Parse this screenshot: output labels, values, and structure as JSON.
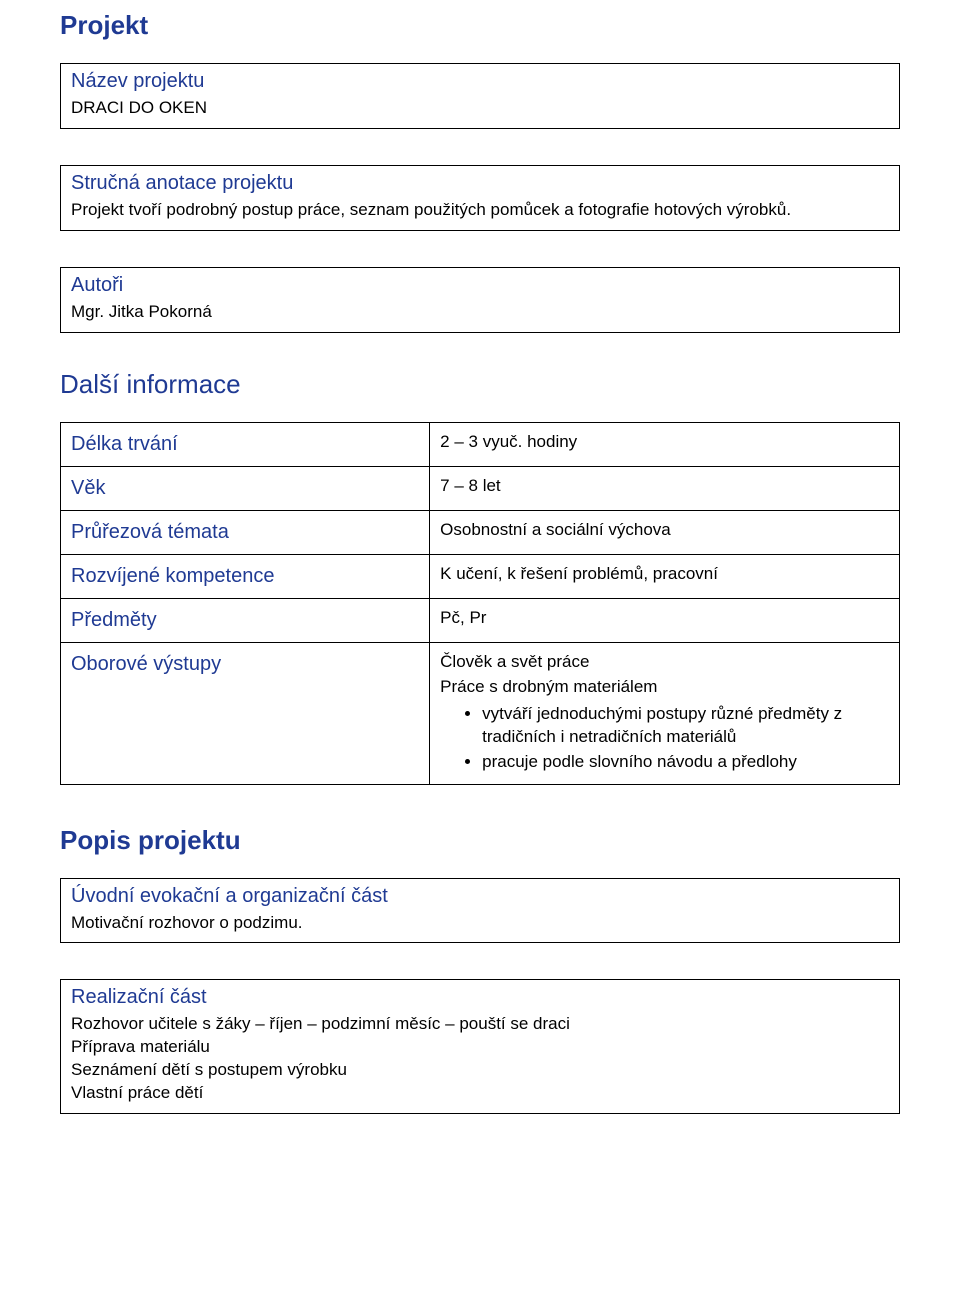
{
  "headings": {
    "project": "Projekt",
    "more_info": "Další informace",
    "description": "Popis projektu"
  },
  "name_box": {
    "title": "Název projektu",
    "value": "DRACI DO OKEN"
  },
  "annotation_box": {
    "title": "Stručná anotace projektu",
    "value": "Projekt tvoří podrobný postup práce, seznam použitých pomůcek a fotografie hotových výrobků."
  },
  "authors_box": {
    "title": "Autoři",
    "value": "Mgr. Jitka Pokorná"
  },
  "info": {
    "duration_label": "Délka trvání",
    "duration_value": "2 – 3 vyuč. hodiny",
    "age_label": "Věk",
    "age_value": "7 – 8 let",
    "crosscut_label": "Průřezová témata",
    "crosscut_value": "Osobnostní a sociální výchova",
    "competence_label": "Rozvíjené kompetence",
    "competence_value": "K učení, k řešení problémů, pracovní",
    "subjects_label": "Předměty",
    "subjects_value": "Pč, Pr",
    "outputs_label": "Oborové výstupy",
    "outputs_line1": "Člověk a svět práce",
    "outputs_line2": "Práce s drobným materiálem",
    "outputs_bullet1": "vytváří jednoduchými postupy různé předměty z tradičních i netradičních materiálů",
    "outputs_bullet2": "pracuje podle slovního návodu a předlohy"
  },
  "intro_box": {
    "title": "Úvodní evokační a organizační část",
    "value": "Motivační rozhovor o podzimu."
  },
  "realization_box": {
    "title": "Realizační část",
    "line1": "Rozhovor učitele s žáky – říjen – podzimní měsíc – pouští se draci",
    "line2": "Příprava materiálu",
    "line3": "Seznámení dětí s postupem výrobku",
    "line4": "Vlastní práce dětí"
  },
  "colors": {
    "heading": "#1f3a93",
    "text": "#000000",
    "border": "#000000",
    "background": "#ffffff"
  }
}
